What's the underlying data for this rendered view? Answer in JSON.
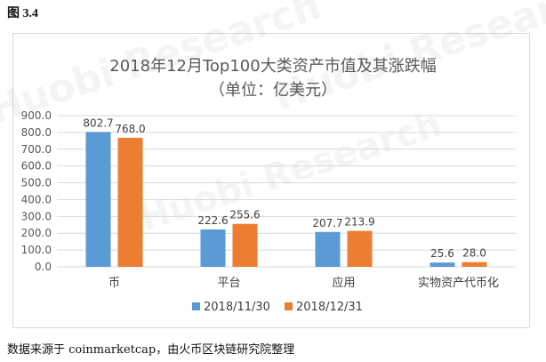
{
  "figure_label": "图 3.4",
  "footer": "数据来源于 coinmarketcap，由火币区块链研究院整理",
  "watermark": "Huobi Research",
  "colors": {
    "series1": "#5b9bd5",
    "series2": "#ed7d31",
    "grid": "#d9d9d9",
    "axis_text": "#595959"
  },
  "chart_data": {
    "type": "bar",
    "title": "2018年12月Top100大类资产市值及其涨跌幅",
    "subtitle": "（单位：亿美元）",
    "categories": [
      "币",
      "平台",
      "应用",
      "实物资产代币化"
    ],
    "series": [
      {
        "name": "2018/11/30",
        "values": [
          802.7,
          222.6,
          207.7,
          25.6
        ],
        "labels": [
          "802.7",
          "222.6",
          "207.7",
          "25.6"
        ]
      },
      {
        "name": "2018/12/31",
        "values": [
          768.0,
          255.6,
          213.9,
          28.0
        ],
        "labels": [
          "768.0",
          "255.6",
          "213.9",
          "28.0"
        ]
      }
    ],
    "ylim": [
      0,
      900
    ],
    "yticks": [
      "0.0",
      "100.0",
      "200.0",
      "300.0",
      "400.0",
      "500.0",
      "600.0",
      "700.0",
      "800.0",
      "900.0"
    ],
    "grid": true,
    "legend": "bottom"
  }
}
